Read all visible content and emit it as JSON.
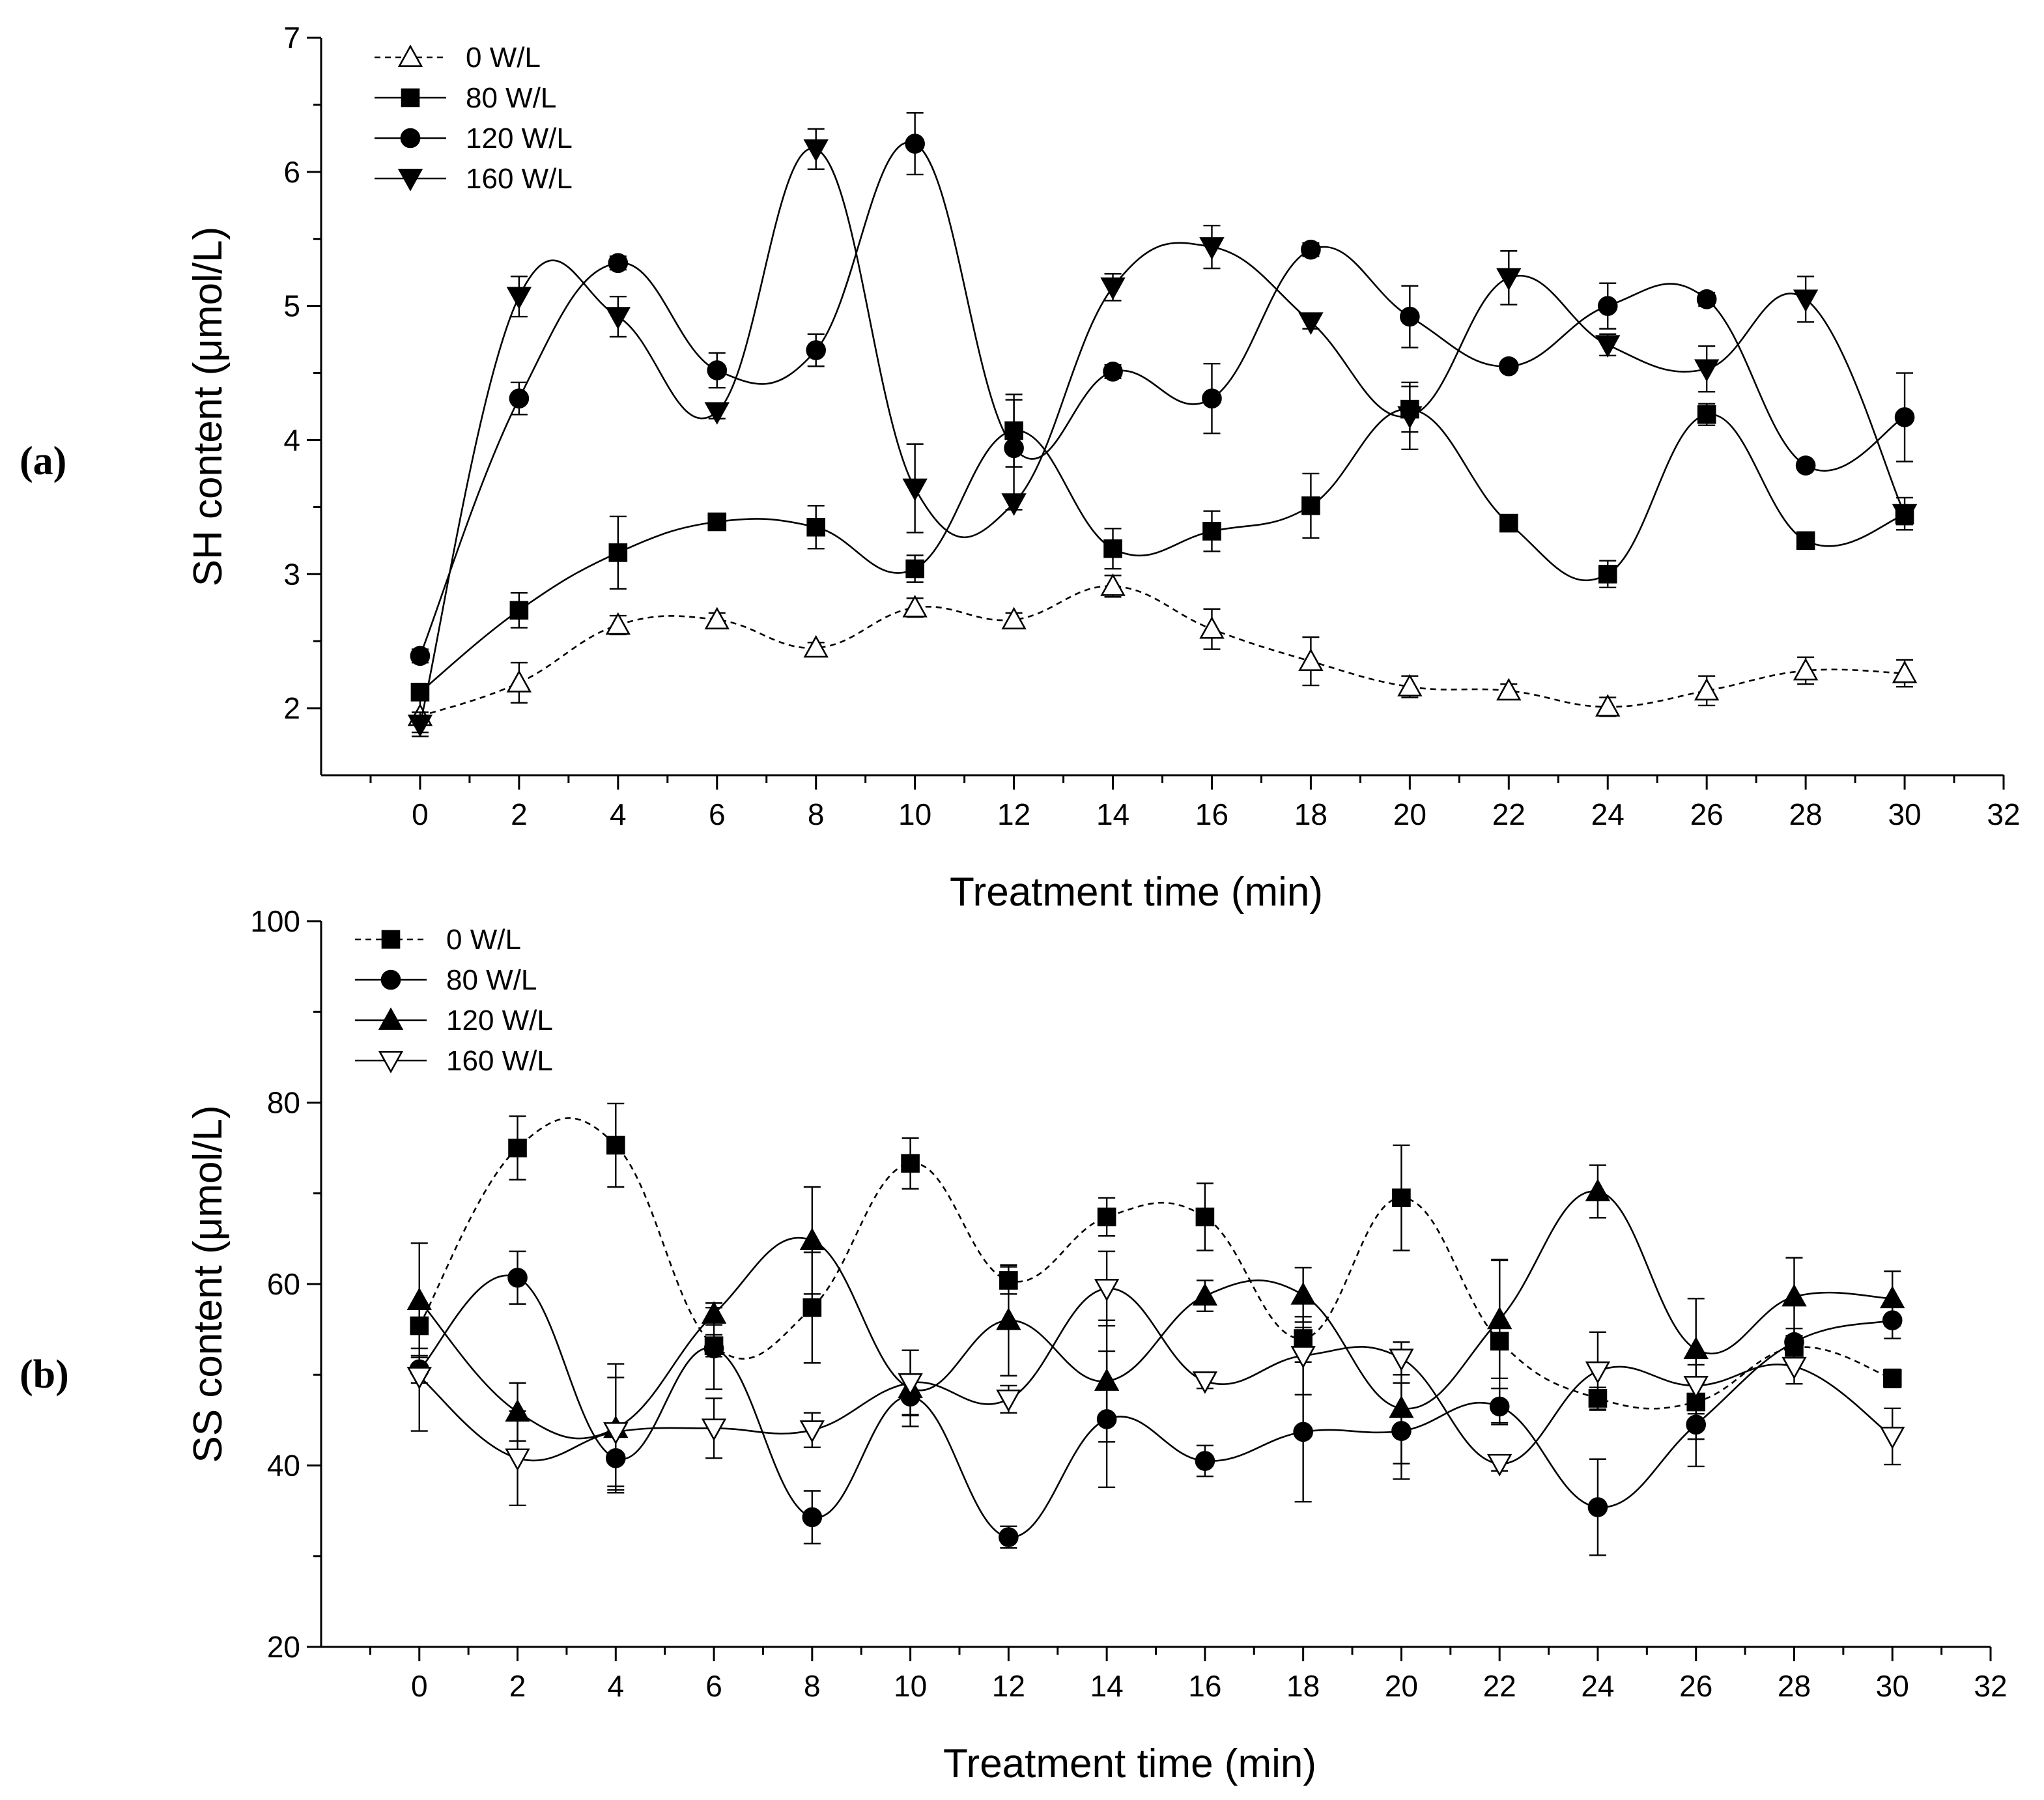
{
  "chart_data": [
    {
      "type": "line",
      "panel_label": "(a)",
      "title": "",
      "xlabel": "Treatment time (min)",
      "ylabel": "SH content  (μmol/L)",
      "xlim": [
        -2,
        32
      ],
      "ylim": [
        1.5,
        7
      ],
      "xticks": [
        0,
        2,
        4,
        6,
        8,
        10,
        12,
        14,
        16,
        18,
        20,
        22,
        24,
        26,
        28,
        30,
        32
      ],
      "yticks": [
        2,
        3,
        4,
        5,
        6,
        7
      ],
      "legend_position": "top-left",
      "x": [
        0,
        2,
        4,
        6,
        8,
        10,
        12,
        14,
        16,
        18,
        20,
        22,
        24,
        26,
        28,
        30
      ],
      "series": [
        {
          "name": "0 W/L",
          "marker": "triangle-up-open",
          "dashed": true,
          "values": [
            1.94,
            2.19,
            2.62,
            2.66,
            2.45,
            2.75,
            2.66,
            2.91,
            2.59,
            2.35,
            2.16,
            2.13,
            2.01,
            2.13,
            2.28,
            2.26
          ],
          "errors": [
            0.12,
            0.15,
            0.07,
            0.05,
            0.04,
            0.07,
            0.05,
            0.08,
            0.15,
            0.18,
            0.08,
            0.05,
            0.07,
            0.11,
            0.1,
            0.1
          ]
        },
        {
          "name": "80 W/L",
          "marker": "square-filled",
          "dashed": false,
          "values": [
            2.12,
            2.73,
            3.16,
            3.39,
            3.35,
            3.04,
            4.07,
            3.19,
            3.32,
            3.51,
            4.23,
            3.38,
            3.0,
            4.19,
            3.25,
            3.44
          ],
          "errors": [
            0.05,
            0.13,
            0.27,
            0.03,
            0.16,
            0.1,
            0.27,
            0.15,
            0.15,
            0.24,
            0.17,
            0.05,
            0.1,
            0.08,
            0.05,
            0.07
          ]
        },
        {
          "name": "120 W/L",
          "marker": "circle-filled",
          "dashed": false,
          "values": [
            2.39,
            4.31,
            5.32,
            4.52,
            4.67,
            6.21,
            3.94,
            4.51,
            4.31,
            5.42,
            4.92,
            4.55,
            5.0,
            5.05,
            3.81,
            4.17
          ],
          "errors": [
            0.05,
            0.12,
            0.05,
            0.13,
            0.12,
            0.23,
            0.36,
            0.05,
            0.26,
            0.05,
            0.23,
            0.02,
            0.17,
            0.05,
            0.03,
            0.33
          ]
        },
        {
          "name": "160 W/L",
          "marker": "triangle-down-filled",
          "dashed": false,
          "values": [
            1.88,
            5.07,
            4.92,
            4.21,
            6.17,
            3.64,
            3.53,
            5.14,
            5.44,
            4.88,
            4.18,
            5.21,
            4.71,
            4.53,
            5.05,
            3.45
          ],
          "errors": [
            0.09,
            0.15,
            0.15,
            0.05,
            0.15,
            0.33,
            0.05,
            0.1,
            0.16,
            0.05,
            0.25,
            0.2,
            0.08,
            0.17,
            0.17,
            0.12
          ]
        }
      ]
    },
    {
      "type": "line",
      "panel_label": "(b)",
      "title": "",
      "xlabel": "Treatment time (min)",
      "ylabel": "SS content (μmol/L)",
      "xlim": [
        -2,
        32
      ],
      "ylim": [
        20,
        100
      ],
      "xticks": [
        0,
        2,
        4,
        6,
        8,
        10,
        12,
        14,
        16,
        18,
        20,
        22,
        24,
        26,
        28,
        30,
        32
      ],
      "yticks": [
        20,
        40,
        60,
        80,
        100
      ],
      "legend_position": "top-left",
      "x": [
        0,
        2,
        4,
        6,
        8,
        10,
        12,
        14,
        16,
        18,
        20,
        22,
        24,
        26,
        28,
        30
      ],
      "series": [
        {
          "name": "0 W/L",
          "marker": "square-filled",
          "dashed": true,
          "values": [
            55.4,
            75.0,
            75.3,
            53.2,
            57.4,
            73.3,
            60.4,
            67.4,
            67.4,
            54.0,
            69.5,
            53.7,
            47.4,
            47.0,
            53.0,
            49.6
          ],
          "errors": [
            2.5,
            3.5,
            4.6,
            1.2,
            6.1,
            2.8,
            1.5,
            2.1,
            3.7,
            1.2,
            5.8,
            9.0,
            1.2,
            4.1,
            1.3,
            1.0
          ]
        },
        {
          "name": "80 W/L",
          "marker": "circle-filled",
          "dashed": false,
          "values": [
            50.6,
            60.7,
            40.8,
            52.9,
            34.3,
            47.6,
            32.1,
            45.1,
            40.5,
            43.7,
            43.8,
            46.5,
            35.4,
            44.5,
            53.6,
            56.0
          ],
          "errors": [
            1.5,
            2.9,
            3.5,
            4.5,
            2.9,
            2.0,
            1.2,
            7.5,
            1.7,
            7.7,
            5.3,
            2.0,
            5.3,
            4.6,
            1.5,
            2.0
          ]
        },
        {
          "name": "120 W/L",
          "marker": "triangle-up-filled",
          "dashed": false,
          "values": [
            58.2,
            45.9,
            44.1,
            56.7,
            64.8,
            48.5,
            56.0,
            49.3,
            58.7,
            58.8,
            46.3,
            56.1,
            70.2,
            52.8,
            58.6,
            58.4
          ],
          "errors": [
            6.3,
            3.2,
            7.1,
            1.2,
            5.9,
            4.2,
            6.1,
            6.7,
            1.7,
            3.0,
            6.1,
            6.5,
            2.9,
            5.6,
            4.3,
            3.0
          ]
        },
        {
          "name": "160 W/L",
          "marker": "triangle-down-open",
          "dashed": false,
          "values": [
            49.8,
            40.8,
            43.7,
            44.1,
            43.9,
            49.1,
            47.3,
            59.5,
            49.3,
            52.1,
            51.8,
            40.2,
            50.4,
            48.8,
            50.9,
            43.2
          ],
          "errors": [
            6.0,
            5.2,
            6.0,
            3.3,
            1.9,
            3.6,
            1.5,
            4.1,
            0.8,
            4.3,
            1.8,
            0.8,
            4.3,
            3.1,
            1.9,
            3.1
          ]
        }
      ]
    }
  ]
}
